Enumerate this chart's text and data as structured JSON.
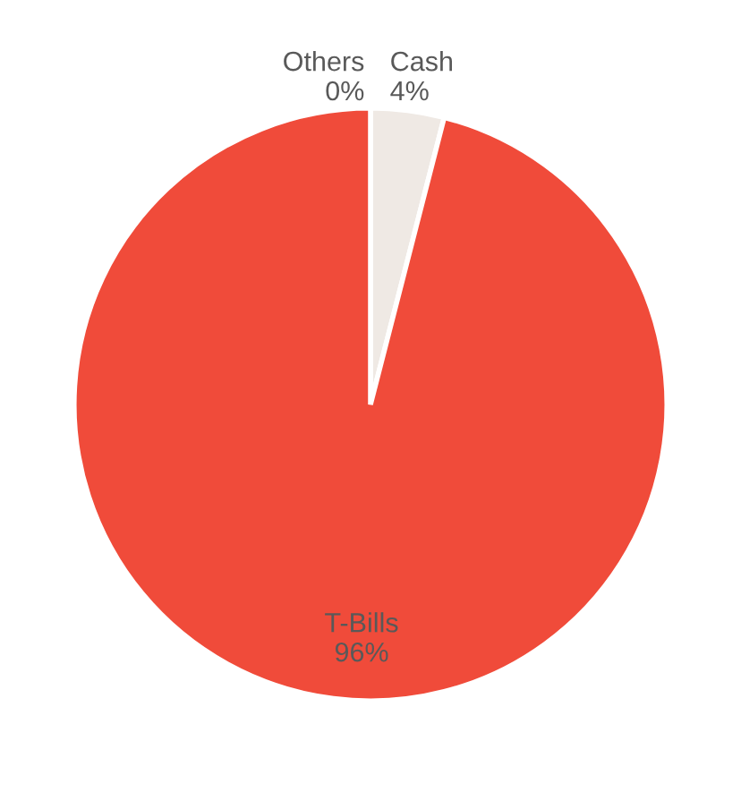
{
  "chart_data": {
    "type": "pie",
    "categories": [
      "Others",
      "Cash",
      "T-Bills"
    ],
    "values": [
      0,
      4,
      96
    ],
    "value_labels": [
      "0%",
      "4%",
      "96%"
    ],
    "colors": [
      "#d0cfcf",
      "#efe9e4",
      "#f04b3a"
    ]
  }
}
